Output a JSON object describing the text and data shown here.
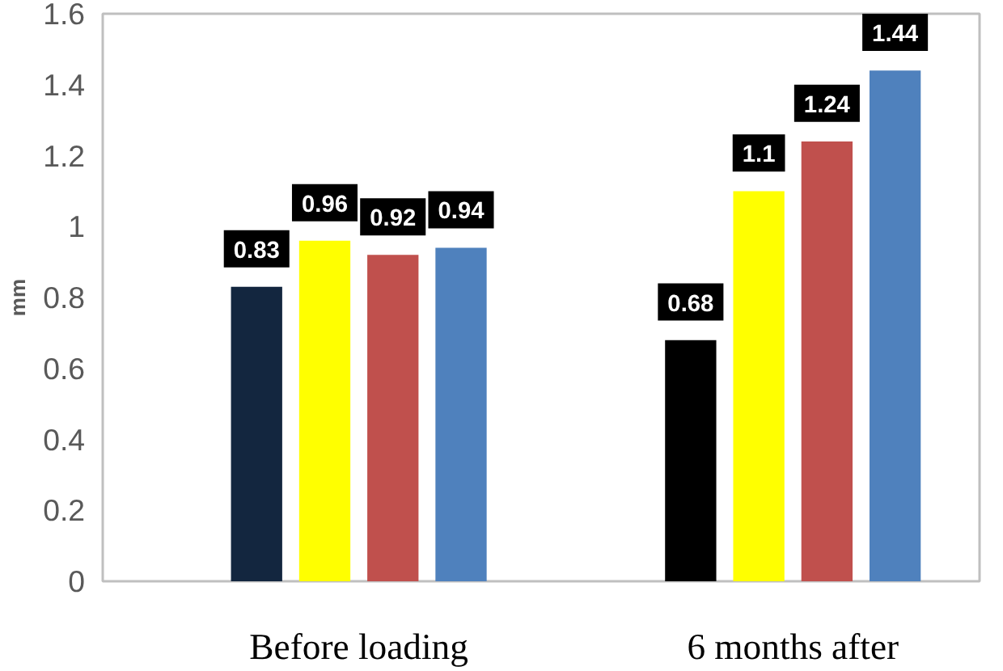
{
  "chart_data": {
    "type": "bar",
    "ylabel": "mm",
    "categories": [
      "Before loading",
      "6 months after"
    ],
    "series": [
      {
        "colors": [
          "#13263f",
          "#000000"
        ],
        "values": [
          0.83,
          0.68
        ]
      },
      {
        "color": "#ffff00",
        "values": [
          0.96,
          1.1
        ]
      },
      {
        "color": "#c0504d",
        "values": [
          0.92,
          1.24
        ]
      },
      {
        "color": "#4f81bd",
        "values": [
          0.94,
          1.44
        ]
      }
    ],
    "ylim": [
      0,
      1.6
    ],
    "yticks": [
      0,
      0.2,
      0.4,
      0.6,
      0.8,
      1,
      1.2,
      1.4,
      1.6
    ],
    "grid": false,
    "data_labels": true
  }
}
